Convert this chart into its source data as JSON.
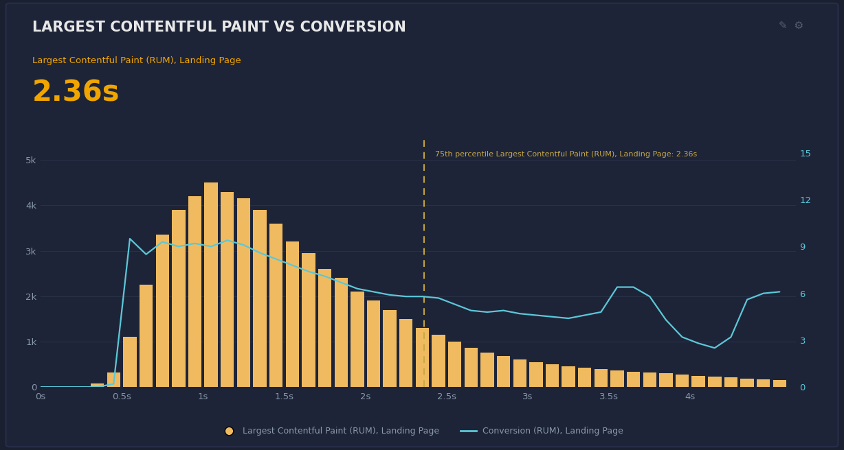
{
  "title": "LARGEST CONTENTFUL PAINT VS CONVERSION",
  "subtitle": "Largest Contentful Paint (RUM), Landing Page",
  "metric_value": "2.36s",
  "background_color": "#1b2030",
  "panel_border_color": "#2a3050",
  "text_color_white": "#e8e8e8",
  "text_color_orange": "#f0a500",
  "text_color_cyan": "#5bc8d8",
  "text_color_gray": "#8899aa",
  "bar_color": "#f0bb60",
  "line_color": "#5bc8d8",
  "vline_color": "#c8a840",
  "vline_x": 2.36,
  "vline_label": "75th percentile Largest Contentful Paint (RUM), Landing Page: 2.36s",
  "xlim": [
    0,
    4.65
  ],
  "ylim_left": [
    0,
    5500
  ],
  "ylim_right": [
    0,
    16
  ],
  "yticks_left": [
    0,
    1000,
    2000,
    3000,
    4000,
    5000
  ],
  "ytick_labels_left": [
    "0",
    "1k",
    "2k",
    "3k",
    "4k",
    "5k"
  ],
  "yticks_right": [
    0,
    3,
    6,
    9,
    12,
    15
  ],
  "ytick_labels_right": [
    "0",
    "3",
    "6",
    "9",
    "12",
    "15"
  ],
  "xtick_positions": [
    0,
    0.5,
    1.0,
    1.5,
    2.0,
    2.5,
    3.0,
    3.5,
    4.0
  ],
  "xtick_labels": [
    "0s",
    "0.5s",
    "1s",
    "1.5s",
    "2s",
    "2.5s",
    "3s",
    "3.5s",
    "4s"
  ],
  "legend_entries": [
    "Largest Contentful Paint (RUM), Landing Page",
    "Conversion (RUM), Landing Page"
  ],
  "bar_centers": [
    0.35,
    0.45,
    0.55,
    0.65,
    0.75,
    0.85,
    0.95,
    1.05,
    1.15,
    1.25,
    1.35,
    1.45,
    1.55,
    1.65,
    1.75,
    1.85,
    1.95,
    2.05,
    2.15,
    2.25,
    2.35,
    2.45,
    2.55,
    2.65,
    2.75,
    2.85,
    2.95,
    3.05,
    3.15,
    3.25,
    3.35,
    3.45,
    3.55,
    3.65,
    3.75,
    3.85,
    3.95,
    4.05,
    4.15,
    4.25,
    4.35,
    4.45,
    4.55
  ],
  "bar_heights": [
    80,
    320,
    1100,
    2250,
    3350,
    3900,
    4200,
    4500,
    4300,
    4150,
    3900,
    3600,
    3200,
    2950,
    2600,
    2400,
    2100,
    1900,
    1700,
    1500,
    1300,
    1150,
    1000,
    870,
    760,
    680,
    610,
    550,
    500,
    460,
    430,
    400,
    370,
    340,
    320,
    300,
    280,
    250,
    230,
    210,
    190,
    170,
    150
  ],
  "line_x": [
    0.0,
    0.15,
    0.35,
    0.45,
    0.55,
    0.65,
    0.75,
    0.85,
    0.95,
    1.05,
    1.15,
    1.25,
    1.35,
    1.45,
    1.55,
    1.65,
    1.75,
    1.85,
    1.95,
    2.05,
    2.15,
    2.25,
    2.35,
    2.45,
    2.55,
    2.65,
    2.75,
    2.85,
    2.95,
    3.05,
    3.15,
    3.25,
    3.35,
    3.45,
    3.55,
    3.65,
    3.75,
    3.85,
    3.95,
    4.05,
    4.15,
    4.25,
    4.35,
    4.45,
    4.55
  ],
  "line_y": [
    0,
    0,
    0,
    0.2,
    9.5,
    8.5,
    9.3,
    9.0,
    9.2,
    9.0,
    9.4,
    9.1,
    8.6,
    8.2,
    7.8,
    7.4,
    7.1,
    6.7,
    6.3,
    6.1,
    5.9,
    5.8,
    5.8,
    5.7,
    5.3,
    4.9,
    4.8,
    4.9,
    4.7,
    4.6,
    4.5,
    4.4,
    4.6,
    4.8,
    6.4,
    6.4,
    5.8,
    4.3,
    3.2,
    2.8,
    2.5,
    3.2,
    5.6,
    6.0,
    6.1
  ]
}
